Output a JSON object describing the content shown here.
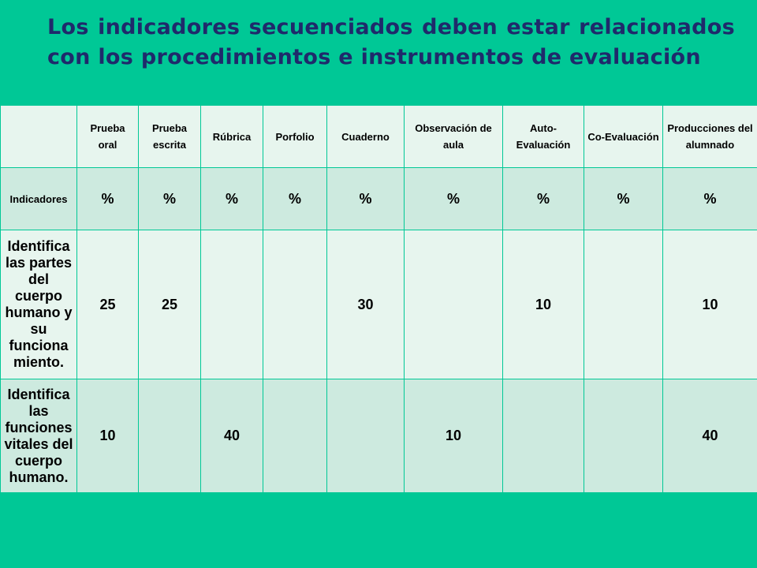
{
  "title": "Los indicadores secuenciados deben estar relacionados con los procedimientos e instrumentos de evaluación",
  "table": {
    "header": [
      "Prueba oral",
      "Prueba escrita",
      "Rúbrica",
      "Porfolio",
      "Cuaderno",
      "Observación de aula",
      "Auto-Evaluación",
      "Co-Evaluación",
      "Producciones del alumnado"
    ],
    "rows": [
      [
        "Indicadores",
        "%",
        "%",
        "%",
        "%",
        "%",
        "%",
        "%",
        "%",
        "%"
      ],
      [
        "Identifica las partes del cuerpo humano y su funcionamiento.",
        25,
        25,
        null,
        null,
        30,
        null,
        10,
        null,
        10
      ],
      [
        "Identifica las funciones vitales del cuerpo humano.",
        10,
        null,
        40,
        null,
        null,
        10,
        null,
        null,
        40
      ]
    ]
  }
}
